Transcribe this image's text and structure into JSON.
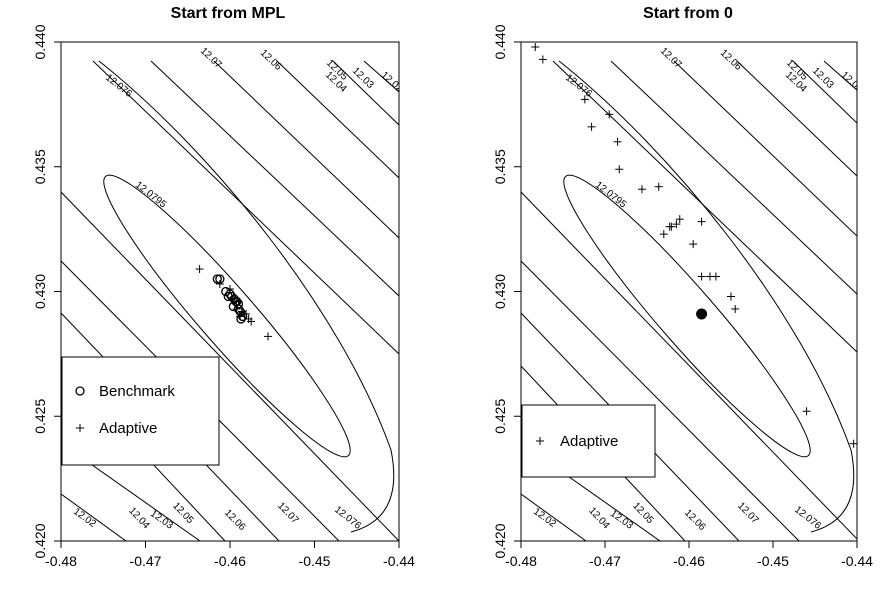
{
  "chart_data": [
    {
      "type": "scatter",
      "title": "Start from MPL",
      "xlim": [
        -0.48,
        -0.44
      ],
      "ylim": [
        0.42,
        0.44
      ],
      "x_ticks": [
        "-0.48",
        "-0.47",
        "-0.46",
        "-0.45",
        "-0.44"
      ],
      "y_ticks": [
        "0.420",
        "0.425",
        "0.430",
        "0.435",
        "0.440"
      ],
      "contour_levels": [
        "12.02",
        "12.03",
        "12.04",
        "12.05",
        "12.06",
        "12.07",
        "12.076",
        "12.0795"
      ],
      "legend": {
        "position": "left",
        "items": [
          "Benchmark",
          "Adaptive"
        ]
      },
      "series": [
        {
          "name": "Benchmark",
          "marker": "circle",
          "x": [
            -0.4615,
            -0.4612,
            -0.4605,
            -0.4602,
            -0.4598,
            -0.4595,
            -0.4592,
            -0.459,
            -0.4588,
            -0.4585,
            -0.459,
            -0.4596,
            -0.4587,
            -0.46,
            -0.4593
          ],
          "y": [
            0.4305,
            0.4305,
            0.43,
            0.4298,
            0.4298,
            0.4297,
            0.4296,
            0.4295,
            0.4292,
            0.429,
            0.4293,
            0.4294,
            0.4289,
            0.4299,
            0.4296
          ]
        },
        {
          "name": "Adaptive",
          "marker": "plus",
          "x": [
            -0.4636,
            -0.4612,
            -0.46,
            -0.4595,
            -0.459,
            -0.4586,
            -0.4583,
            -0.4581,
            -0.4578,
            -0.4575,
            -0.4555,
            -0.4592,
            -0.4588
          ],
          "y": [
            0.4309,
            0.4303,
            0.4301,
            0.4297,
            0.4296,
            0.4292,
            0.4291,
            0.4291,
            0.4289,
            0.4288,
            0.4282,
            0.4293,
            0.429
          ]
        }
      ]
    },
    {
      "type": "scatter",
      "title": "Start from 0",
      "xlim": [
        -0.48,
        -0.44
      ],
      "ylim": [
        0.42,
        0.44
      ],
      "x_ticks": [
        "-0.48",
        "-0.47",
        "-0.46",
        "-0.45",
        "-0.44"
      ],
      "y_ticks": [
        "0.420",
        "0.425",
        "0.430",
        "0.435",
        "0.440"
      ],
      "contour_levels": [
        "12.02",
        "12.03",
        "12.04",
        "12.05",
        "12.06",
        "12.07",
        "12.076",
        "12.0795"
      ],
      "legend": {
        "position": "bottom-left",
        "items": [
          "Adaptive"
        ]
      },
      "series": [
        {
          "name": "Adaptive",
          "marker": "plus",
          "x": [
            -0.4783,
            -0.4774,
            -0.4724,
            -0.4716,
            -0.4695,
            -0.4685,
            -0.4683,
            -0.4656,
            -0.4636,
            -0.463,
            -0.4623,
            -0.4621,
            -0.4615,
            -0.4611,
            -0.4595,
            -0.4585,
            -0.4585,
            -0.4575,
            -0.4568,
            -0.455,
            -0.4545,
            -0.446,
            -0.4404
          ],
          "y": [
            0.4398,
            0.4393,
            0.4377,
            0.4366,
            0.4371,
            0.436,
            0.4349,
            0.4341,
            0.4342,
            0.4323,
            0.4326,
            0.4326,
            0.4327,
            0.4329,
            0.4319,
            0.4328,
            0.4306,
            0.4306,
            0.4306,
            0.4298,
            0.4293,
            0.4252,
            0.4239
          ]
        },
        {
          "name": "",
          "marker": "filled-circle",
          "x": [
            -0.4585
          ],
          "y": [
            0.4291
          ]
        }
      ]
    }
  ]
}
